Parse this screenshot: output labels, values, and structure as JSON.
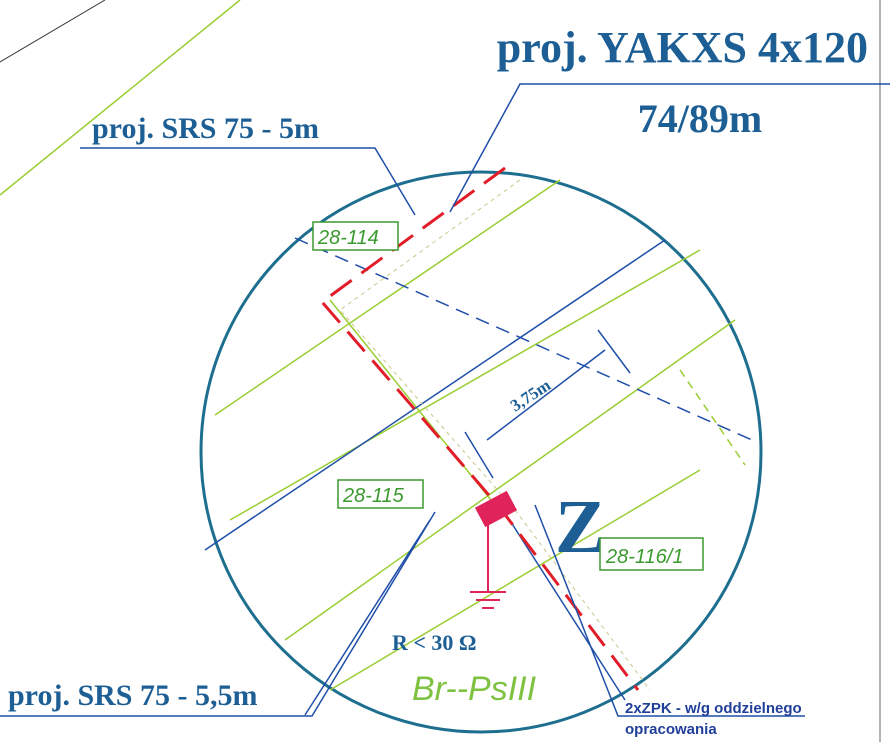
{
  "labels": {
    "cable_title": "proj. YAKXS 4x120",
    "cable_length": "74/89m",
    "srs_top": "proj. SRS 75 - 5m",
    "srs_bottom": "proj. SRS 75 - 5,5m",
    "dimension": "3,75m",
    "marker": "Z",
    "resistance": "R < 30 Ω",
    "zone": "Br--PsIII",
    "note_line1": "2xZPK - w/g oddzielnego",
    "note_line2": "opracowania"
  },
  "parcels": [
    "28-114",
    "28-115",
    "28-116/1"
  ]
}
